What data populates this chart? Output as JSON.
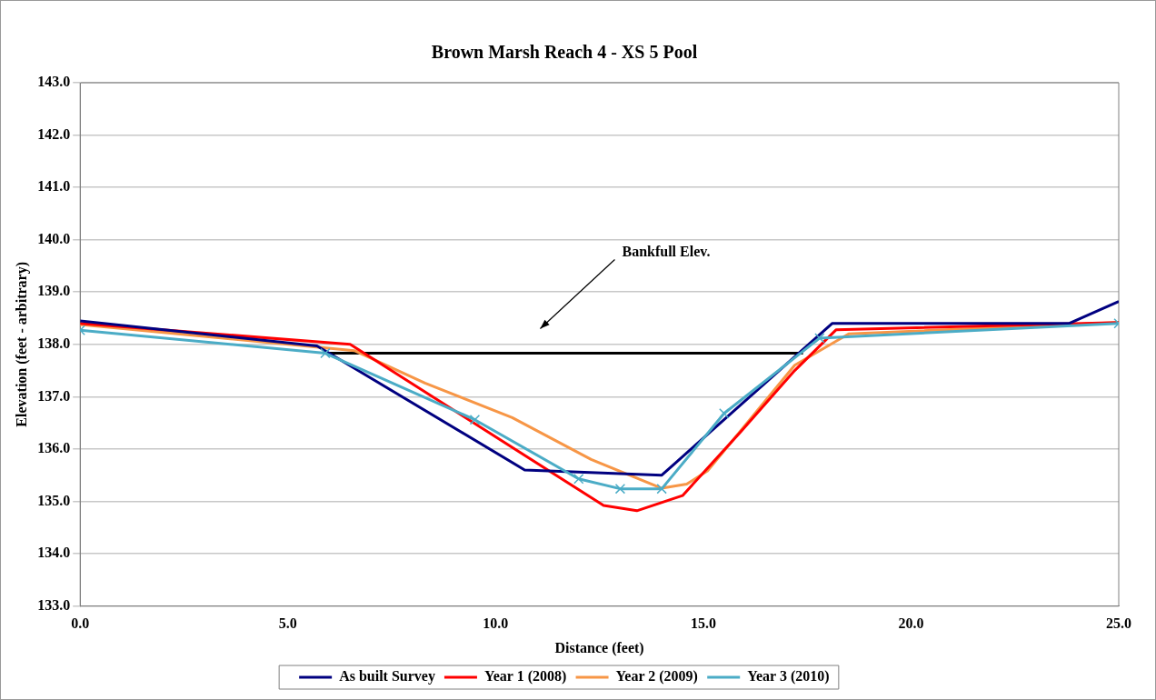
{
  "chart_data": {
    "type": "line",
    "title": "Brown Marsh Reach 4 - XS 5 Pool",
    "xlabel": "Distance (feet)",
    "ylabel": "Elevation (feet - arbitrary)",
    "xlim": [
      0,
      25
    ],
    "xticks": [
      {
        "value": 0,
        "label": "0.0"
      },
      {
        "value": 5,
        "label": "5.0"
      },
      {
        "value": 10,
        "label": "10.0"
      },
      {
        "value": 15,
        "label": "15.0"
      },
      {
        "value": 20,
        "label": "20.0"
      },
      {
        "value": 25,
        "label": "25.0"
      }
    ],
    "ylim": [
      133,
      143
    ],
    "yticks": [
      {
        "value": 133,
        "label": "133.0"
      },
      {
        "value": 134,
        "label": "134.0"
      },
      {
        "value": 135,
        "label": "135.0"
      },
      {
        "value": 136,
        "label": "136.0"
      },
      {
        "value": 137,
        "label": "137.0"
      },
      {
        "value": 138,
        "label": "138.0"
      },
      {
        "value": 139,
        "label": "139.0"
      },
      {
        "value": 140,
        "label": "140.0"
      },
      {
        "value": 141,
        "label": "141.0"
      },
      {
        "value": 142,
        "label": "142.0"
      },
      {
        "value": 143,
        "label": "143.0"
      }
    ],
    "grid": "y",
    "legend": "bottom",
    "marker": "none",
    "line_style": "solid",
    "series": [
      {
        "name": "As built Survey",
        "color": "#000080",
        "x": [
          0,
          5.7,
          10.7,
          14.0,
          18.1,
          23.8,
          25
        ],
        "values": [
          138.45,
          137.97,
          135.6,
          135.5,
          138.4,
          138.4,
          138.82
        ]
      },
      {
        "name": "Year 1 (2008)",
        "color": "#ff0000",
        "x": [
          0,
          6.5,
          12.6,
          13.4,
          14.5,
          15.9,
          17.2,
          18.2,
          25
        ],
        "values": [
          138.4,
          138.0,
          134.92,
          134.82,
          135.11,
          136.33,
          137.5,
          138.28,
          138.42
        ]
      },
      {
        "name": "Year 2 (2009)",
        "color": "#f79646",
        "x": [
          0,
          6.6,
          8.3,
          10.4,
          12.3,
          14.0,
          14.6,
          15.1,
          17.2,
          18.5,
          25
        ],
        "values": [
          138.38,
          137.88,
          137.26,
          136.6,
          135.8,
          135.25,
          135.33,
          135.58,
          137.6,
          138.2,
          138.42
        ]
      },
      {
        "name": "Year 3 (2010)",
        "color": "#4bacc6",
        "marker": "cross",
        "x": [
          0,
          5.9,
          9.5,
          12.0,
          13.0,
          14.0,
          15.5,
          17.8,
          25
        ],
        "values": [
          138.27,
          137.83,
          136.56,
          135.43,
          135.24,
          135.24,
          136.68,
          138.12,
          138.4
        ]
      },
      {
        "color": "#000000",
        "x": [
          6.0,
          17.4
        ],
        "values": [
          137.83,
          137.83
        ]
      }
    ],
    "annotations": [
      "Bankfull Elev."
    ]
  }
}
